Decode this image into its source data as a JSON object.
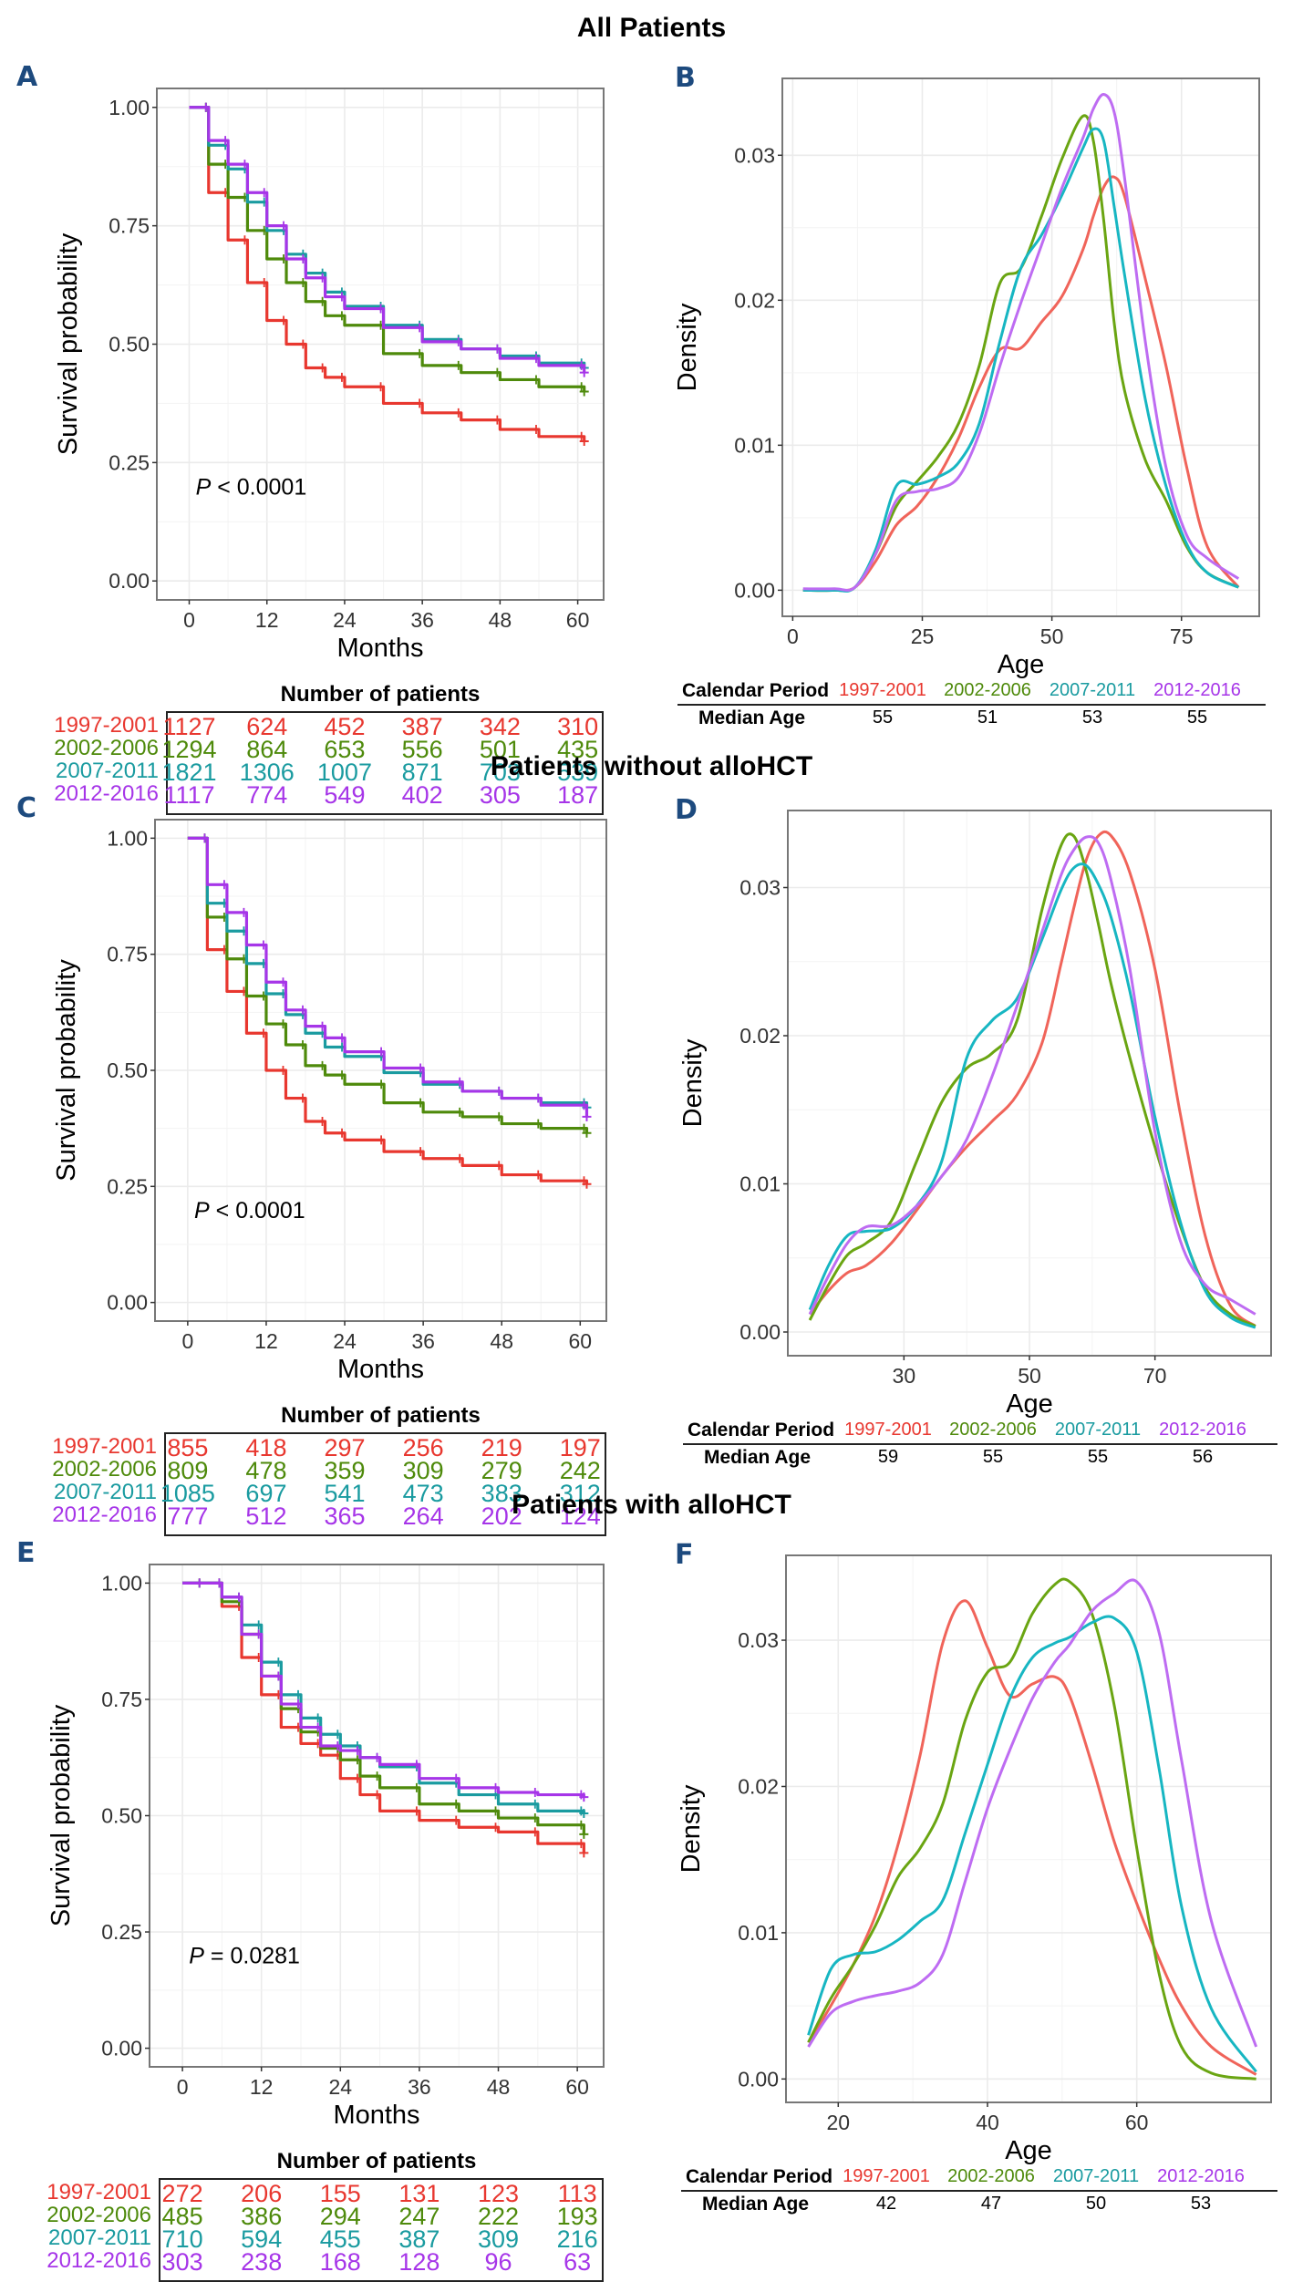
{
  "series_names": [
    "1997-2001",
    "2002-2006",
    "2007-2011",
    "2012-2016"
  ],
  "series_colors": [
    "#e8372f",
    "#4e8a0b",
    "#1a9ba0",
    "#a635e8"
  ],
  "density_colors": [
    "#f0645a",
    "#6aa512",
    "#17b6c2",
    "#be6cf2"
  ],
  "sections": [
    {
      "title": "All Patients",
      "km_letter": "A",
      "density_letter": "B",
      "risk_title": "Number of patients",
      "median_header": "Calendar Period",
      "median_row_label": "Median Age",
      "median_ages": [
        "55",
        "51",
        "53",
        "55"
      ],
      "risk_table": [
        [
          "1127",
          "624",
          "452",
          "387",
          "342",
          "310"
        ],
        [
          "1294",
          "864",
          "653",
          "556",
          "501",
          "435"
        ],
        [
          "1821",
          "1306",
          "1007",
          "871",
          "703",
          "539"
        ],
        [
          "1117",
          "774",
          "549",
          "402",
          "305",
          "187"
        ]
      ]
    },
    {
      "title": "Patients without alloHCT",
      "km_letter": "C",
      "density_letter": "D",
      "risk_title": "Number of patients",
      "median_header": "Calendar Period",
      "median_row_label": "Median Age",
      "median_ages": [
        "59",
        "55",
        "55",
        "56"
      ],
      "risk_table": [
        [
          "855",
          "418",
          "297",
          "256",
          "219",
          "197"
        ],
        [
          "809",
          "478",
          "359",
          "309",
          "279",
          "242"
        ],
        [
          "1085",
          "697",
          "541",
          "473",
          "383",
          "312"
        ],
        [
          "777",
          "512",
          "365",
          "264",
          "202",
          "124"
        ]
      ]
    },
    {
      "title": "Patients with alloHCT",
      "km_letter": "E",
      "density_letter": "F",
      "risk_title": "Number of patients",
      "median_header": "Calendar Period",
      "median_row_label": "Median Age",
      "median_ages": [
        "42",
        "47",
        "50",
        "53"
      ],
      "risk_table": [
        [
          "272",
          "206",
          "155",
          "131",
          "123",
          "113"
        ],
        [
          "485",
          "386",
          "294",
          "247",
          "222",
          "193"
        ],
        [
          "710",
          "594",
          "455",
          "387",
          "309",
          "216"
        ],
        [
          "303",
          "238",
          "168",
          "128",
          "96",
          "63"
        ]
      ]
    }
  ],
  "chart_data": [
    {
      "panel": "A",
      "type": "line",
      "title": "All Patients",
      "xlabel": "Months",
      "ylabel": "Survival probability",
      "xlim": [
        -5,
        64
      ],
      "ylim": [
        -0.04,
        1.04
      ],
      "xticks": [
        0,
        12,
        24,
        36,
        48,
        60
      ],
      "yticks": [
        0,
        0.25,
        0.5,
        0.75,
        1.0
      ],
      "ytick_labels": [
        "0.00",
        "0.25",
        "0.50",
        "0.75",
        "1.00"
      ],
      "grid": true,
      "annotation": {
        "prefix": "P",
        "text": " < 0.0001",
        "x": 1,
        "y": 0.2
      },
      "x": [
        0,
        3,
        6,
        9,
        12,
        15,
        18,
        21,
        24,
        30,
        36,
        42,
        48,
        54,
        61
      ],
      "series": [
        {
          "name": "1997-2001",
          "values": [
            1.0,
            0.82,
            0.72,
            0.63,
            0.55,
            0.5,
            0.45,
            0.43,
            0.41,
            0.375,
            0.355,
            0.34,
            0.32,
            0.305,
            0.295
          ]
        },
        {
          "name": "2002-2006",
          "values": [
            1.0,
            0.88,
            0.81,
            0.74,
            0.68,
            0.63,
            0.59,
            0.56,
            0.54,
            0.48,
            0.455,
            0.44,
            0.425,
            0.41,
            0.4
          ]
        },
        {
          "name": "2007-2011",
          "values": [
            1.0,
            0.92,
            0.87,
            0.8,
            0.74,
            0.69,
            0.65,
            0.61,
            0.58,
            0.54,
            0.51,
            0.49,
            0.475,
            0.46,
            0.45
          ]
        },
        {
          "name": "2012-2016",
          "values": [
            1.0,
            0.93,
            0.88,
            0.82,
            0.75,
            0.68,
            0.64,
            0.6,
            0.575,
            0.535,
            0.505,
            0.49,
            0.47,
            0.455,
            0.44
          ]
        }
      ]
    },
    {
      "panel": "B",
      "type": "line",
      "title": "All Patients",
      "xlabel": "Age",
      "ylabel": "Density",
      "xlim": [
        -2,
        90
      ],
      "ylim": [
        -0.0018,
        0.0353
      ],
      "xticks": [
        0,
        25,
        50,
        75
      ],
      "yticks": [
        0,
        0.01,
        0.02,
        0.03
      ],
      "ytick_labels": [
        "0.00",
        "0.01",
        "0.02",
        "0.03"
      ],
      "grid": true,
      "x": [
        2,
        8,
        12,
        16,
        20,
        24,
        28,
        32,
        36,
        40,
        44,
        48,
        52,
        56,
        58,
        60,
        62,
        64,
        68,
        72,
        76,
        80,
        86
      ],
      "series": [
        {
          "name": "1997-2001",
          "values": [
            0,
            0,
            0.0002,
            0.002,
            0.0045,
            0.0058,
            0.0078,
            0.0105,
            0.014,
            0.0166,
            0.0167,
            0.0185,
            0.0203,
            0.0235,
            0.0258,
            0.0278,
            0.0285,
            0.0272,
            0.0215,
            0.0155,
            0.0085,
            0.003,
            0.0002
          ]
        },
        {
          "name": "2002-2006",
          "values": [
            0,
            0,
            0.0002,
            0.0025,
            0.0058,
            0.0075,
            0.0092,
            0.0115,
            0.0155,
            0.0212,
            0.0222,
            0.0258,
            0.0298,
            0.0327,
            0.031,
            0.0255,
            0.0185,
            0.0138,
            0.009,
            0.0062,
            0.003,
            0.0012,
            0.0002
          ]
        },
        {
          "name": "2007-2011",
          "values": [
            0,
            0,
            0.0002,
            0.0028,
            0.0072,
            0.0073,
            0.0078,
            0.0088,
            0.0115,
            0.0172,
            0.0222,
            0.0245,
            0.0273,
            0.0305,
            0.0318,
            0.031,
            0.0265,
            0.0218,
            0.0132,
            0.0072,
            0.0032,
            0.0012,
            0.0002
          ]
        },
        {
          "name": "2012-2016",
          "values": [
            0.0001,
            0.0001,
            0.0002,
            0.0025,
            0.0062,
            0.0068,
            0.007,
            0.0078,
            0.0108,
            0.0155,
            0.0198,
            0.0238,
            0.0278,
            0.0312,
            0.0332,
            0.0342,
            0.033,
            0.0285,
            0.0172,
            0.0085,
            0.0038,
            0.0022,
            0.0008
          ]
        }
      ]
    },
    {
      "panel": "C",
      "type": "line",
      "title": "Patients without alloHCT",
      "xlabel": "Months",
      "ylabel": "Survival probability",
      "xlim": [
        -5,
        64
      ],
      "ylim": [
        -0.04,
        1.04
      ],
      "xticks": [
        0,
        12,
        24,
        36,
        48,
        60
      ],
      "yticks": [
        0,
        0.25,
        0.5,
        0.75,
        1.0
      ],
      "ytick_labels": [
        "0.00",
        "0.25",
        "0.50",
        "0.75",
        "1.00"
      ],
      "grid": true,
      "annotation": {
        "prefix": "P",
        "text": " < 0.0001",
        "x": 1,
        "y": 0.2
      },
      "x": [
        0,
        3,
        6,
        9,
        12,
        15,
        18,
        21,
        24,
        30,
        36,
        42,
        48,
        54,
        61
      ],
      "series": [
        {
          "name": "1997-2001",
          "values": [
            1.0,
            0.76,
            0.67,
            0.58,
            0.5,
            0.44,
            0.39,
            0.365,
            0.35,
            0.325,
            0.31,
            0.295,
            0.275,
            0.262,
            0.255
          ]
        },
        {
          "name": "2002-2006",
          "values": [
            1.0,
            0.83,
            0.74,
            0.66,
            0.6,
            0.555,
            0.51,
            0.49,
            0.47,
            0.43,
            0.41,
            0.4,
            0.385,
            0.375,
            0.365
          ]
        },
        {
          "name": "2007-2011",
          "values": [
            1.0,
            0.86,
            0.8,
            0.73,
            0.665,
            0.62,
            0.58,
            0.55,
            0.53,
            0.495,
            0.47,
            0.455,
            0.44,
            0.43,
            0.42
          ]
        },
        {
          "name": "2012-2016",
          "values": [
            1.0,
            0.9,
            0.84,
            0.77,
            0.69,
            0.63,
            0.595,
            0.57,
            0.54,
            0.505,
            0.475,
            0.455,
            0.44,
            0.425,
            0.4
          ]
        }
      ]
    },
    {
      "panel": "D",
      "type": "line",
      "title": "Patients without alloHCT",
      "xlabel": "Age",
      "ylabel": "Density",
      "xlim": [
        11.5,
        88.5
      ],
      "ylim": [
        -0.0016,
        0.0352
      ],
      "xticks": [
        30,
        50,
        70
      ],
      "yticks": [
        0,
        0.01,
        0.02,
        0.03
      ],
      "ytick_labels": [
        "0.00",
        "0.01",
        "0.02",
        "0.03"
      ],
      "grid": true,
      "x": [
        15,
        18,
        21,
        24,
        28,
        32,
        36,
        40,
        44,
        48,
        52,
        55,
        57,
        59,
        61,
        63,
        66,
        70,
        74,
        78,
        82,
        86
      ],
      "series": [
        {
          "name": "1997-2001",
          "values": [
            0.0012,
            0.0028,
            0.004,
            0.0045,
            0.006,
            0.0082,
            0.0105,
            0.0125,
            0.0142,
            0.016,
            0.0195,
            0.0248,
            0.0285,
            0.0318,
            0.0335,
            0.0335,
            0.031,
            0.0245,
            0.0148,
            0.0065,
            0.0018,
            0.0004
          ]
        },
        {
          "name": "2002-2006",
          "values": [
            0.0008,
            0.0032,
            0.0052,
            0.006,
            0.0075,
            0.0115,
            0.0155,
            0.0178,
            0.0188,
            0.021,
            0.0285,
            0.0328,
            0.0335,
            0.0312,
            0.0275,
            0.0235,
            0.0185,
            0.0125,
            0.0072,
            0.003,
            0.0012,
            0.0004
          ]
        },
        {
          "name": "2007-2011",
          "values": [
            0.0015,
            0.0045,
            0.0065,
            0.0068,
            0.007,
            0.0085,
            0.0115,
            0.0185,
            0.021,
            0.0225,
            0.0265,
            0.0298,
            0.0313,
            0.0315,
            0.0302,
            0.028,
            0.023,
            0.0145,
            0.0075,
            0.0028,
            0.001,
            0.0003
          ]
        },
        {
          "name": "2012-2016",
          "values": [
            0.0012,
            0.0038,
            0.006,
            0.0071,
            0.0072,
            0.0085,
            0.0105,
            0.013,
            0.0172,
            0.022,
            0.027,
            0.0308,
            0.0325,
            0.0334,
            0.033,
            0.0305,
            0.0245,
            0.0135,
            0.0062,
            0.0032,
            0.0022,
            0.0012
          ]
        }
      ]
    },
    {
      "panel": "E",
      "type": "line",
      "title": "Patients with alloHCT",
      "xlabel": "Months",
      "ylabel": "Survival probability",
      "xlim": [
        -5,
        64
      ],
      "ylim": [
        -0.04,
        1.04
      ],
      "xticks": [
        0,
        12,
        24,
        36,
        48,
        60
      ],
      "yticks": [
        0,
        0.25,
        0.5,
        0.75,
        1.0
      ],
      "ytick_labels": [
        "0.00",
        "0.25",
        "0.50",
        "0.75",
        "1.00"
      ],
      "grid": true,
      "annotation": {
        "prefix": "P",
        "text": " = 0.0281",
        "x": 1,
        "y": 0.2
      },
      "x": [
        0,
        3,
        6,
        9,
        12,
        15,
        18,
        21,
        24,
        27,
        30,
        36,
        42,
        48,
        54,
        61
      ],
      "series": [
        {
          "name": "1997-2001",
          "values": [
            1.0,
            1.0,
            0.95,
            0.84,
            0.76,
            0.69,
            0.655,
            0.63,
            0.58,
            0.545,
            0.51,
            0.49,
            0.475,
            0.465,
            0.44,
            0.42
          ]
        },
        {
          "name": "2002-2006",
          "values": [
            1.0,
            1.0,
            0.96,
            0.89,
            0.8,
            0.73,
            0.68,
            0.645,
            0.62,
            0.585,
            0.56,
            0.525,
            0.51,
            0.495,
            0.48,
            0.46
          ]
        },
        {
          "name": "2007-2011",
          "values": [
            1.0,
            1.0,
            0.97,
            0.91,
            0.83,
            0.76,
            0.71,
            0.675,
            0.65,
            0.625,
            0.605,
            0.57,
            0.545,
            0.525,
            0.51,
            0.505
          ]
        },
        {
          "name": "2012-2016",
          "values": [
            1.0,
            1.0,
            0.97,
            0.89,
            0.8,
            0.74,
            0.69,
            0.65,
            0.64,
            0.625,
            0.61,
            0.58,
            0.56,
            0.55,
            0.545,
            0.54
          ]
        }
      ]
    },
    {
      "panel": "F",
      "type": "line",
      "title": "Patients with alloHCT",
      "xlabel": "Age",
      "ylabel": "Density",
      "xlim": [
        13,
        78
      ],
      "ylim": [
        -0.0016,
        0.0358
      ],
      "xticks": [
        20,
        40,
        60
      ],
      "yticks": [
        0,
        0.01,
        0.02,
        0.03
      ],
      "ytick_labels": [
        "0.00",
        "0.01",
        "0.02",
        "0.03"
      ],
      "grid": true,
      "x": [
        16,
        19,
        22,
        25,
        28,
        31,
        34,
        37,
        40,
        43,
        46,
        49,
        51,
        54,
        57,
        60,
        63,
        66,
        70,
        76
      ],
      "series": [
        {
          "name": "1997-2001",
          "values": [
            0.0025,
            0.005,
            0.0078,
            0.0112,
            0.016,
            0.0222,
            0.0298,
            0.0327,
            0.0295,
            0.0262,
            0.027,
            0.0275,
            0.0262,
            0.0215,
            0.0162,
            0.012,
            0.0082,
            0.005,
            0.0022,
            0.0003
          ]
        },
        {
          "name": "2002-2006",
          "values": [
            0.0025,
            0.0055,
            0.0078,
            0.0105,
            0.0138,
            0.0158,
            0.0188,
            0.0245,
            0.0278,
            0.0285,
            0.0318,
            0.0338,
            0.034,
            0.0318,
            0.0255,
            0.0158,
            0.0072,
            0.0022,
            0.0004,
            0.0
          ]
        },
        {
          "name": "2007-2011",
          "values": [
            0.003,
            0.0075,
            0.0085,
            0.0087,
            0.0095,
            0.0108,
            0.0122,
            0.0168,
            0.0215,
            0.026,
            0.0288,
            0.0298,
            0.0302,
            0.0312,
            0.0315,
            0.0292,
            0.0212,
            0.0118,
            0.0048,
            0.0005
          ]
        },
        {
          "name": "2012-2016",
          "values": [
            0.0022,
            0.0045,
            0.0053,
            0.0057,
            0.006,
            0.0066,
            0.0085,
            0.0135,
            0.0185,
            0.0225,
            0.026,
            0.0285,
            0.0297,
            0.032,
            0.0332,
            0.034,
            0.0305,
            0.0218,
            0.0108,
            0.0022
          ]
        }
      ]
    }
  ]
}
